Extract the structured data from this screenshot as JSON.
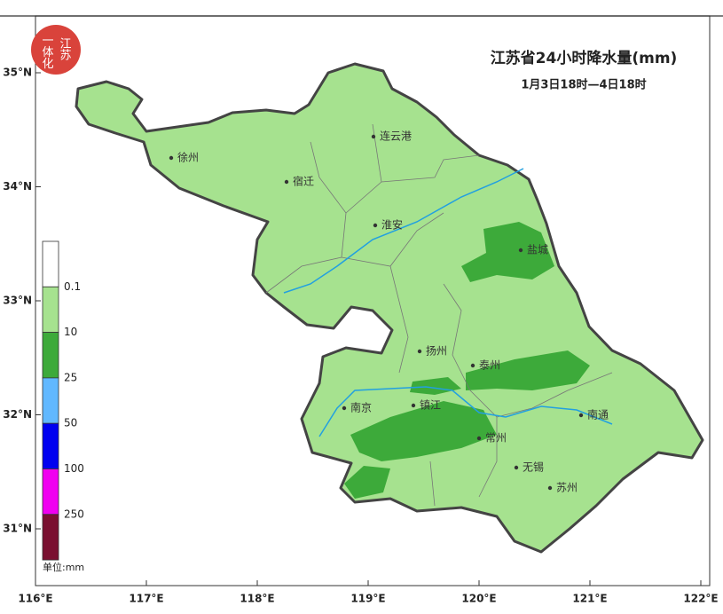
{
  "title": "江苏省24小时降水量(mm)",
  "subtitle": "1月3日18时—4日18时",
  "logo": {
    "line1": "江苏",
    "line2": "一体化"
  },
  "axes": {
    "x_ticks": [
      "116°E",
      "117°E",
      "118°E",
      "119°E",
      "120°E",
      "121°E",
      "122°E"
    ],
    "y_ticks": [
      "35°N",
      "34°N",
      "33°N",
      "32°N",
      "31°N"
    ]
  },
  "legend": {
    "unit": "单位:mm",
    "colors": [
      "#ffffff",
      "#a6e28f",
      "#3daa3a",
      "#61b8ff",
      "#0000f0",
      "#f000f0",
      "#7a1030"
    ],
    "labels": [
      "0.1",
      "10",
      "25",
      "50",
      "100",
      "250"
    ]
  },
  "cities": [
    "徐州",
    "宿迁",
    "连云港",
    "淮安",
    "盐城",
    "扬州",
    "泰州",
    "南京",
    "镇江",
    "南通",
    "常州",
    "无锡",
    "苏州"
  ]
}
